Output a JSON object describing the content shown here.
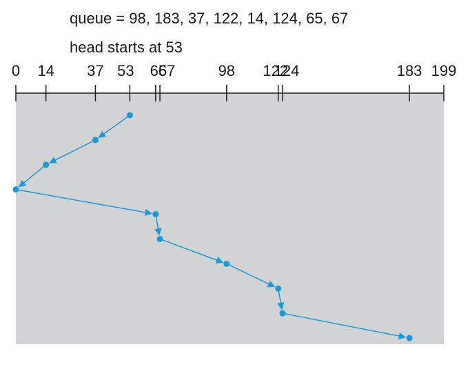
{
  "header": {
    "queue_label": "queue = 98, 183, 37, 122, 14, 124, 65, 67",
    "head_label": "head starts at 53"
  },
  "axis": {
    "min": 0,
    "max": 199,
    "ticks": [
      0,
      14,
      37,
      53,
      65,
      67,
      98,
      122,
      124,
      183,
      199
    ],
    "tick_labels": [
      "0",
      "14",
      "37",
      "53",
      "65",
      "67",
      "98",
      "122",
      "124",
      "183",
      "199"
    ]
  },
  "path": [
    53,
    37,
    14,
    0,
    65,
    67,
    98,
    122,
    124,
    183
  ],
  "colors": {
    "panel": "#d1d3d4",
    "path": "#1a9ad6",
    "axis": "#1a1a1a"
  }
}
